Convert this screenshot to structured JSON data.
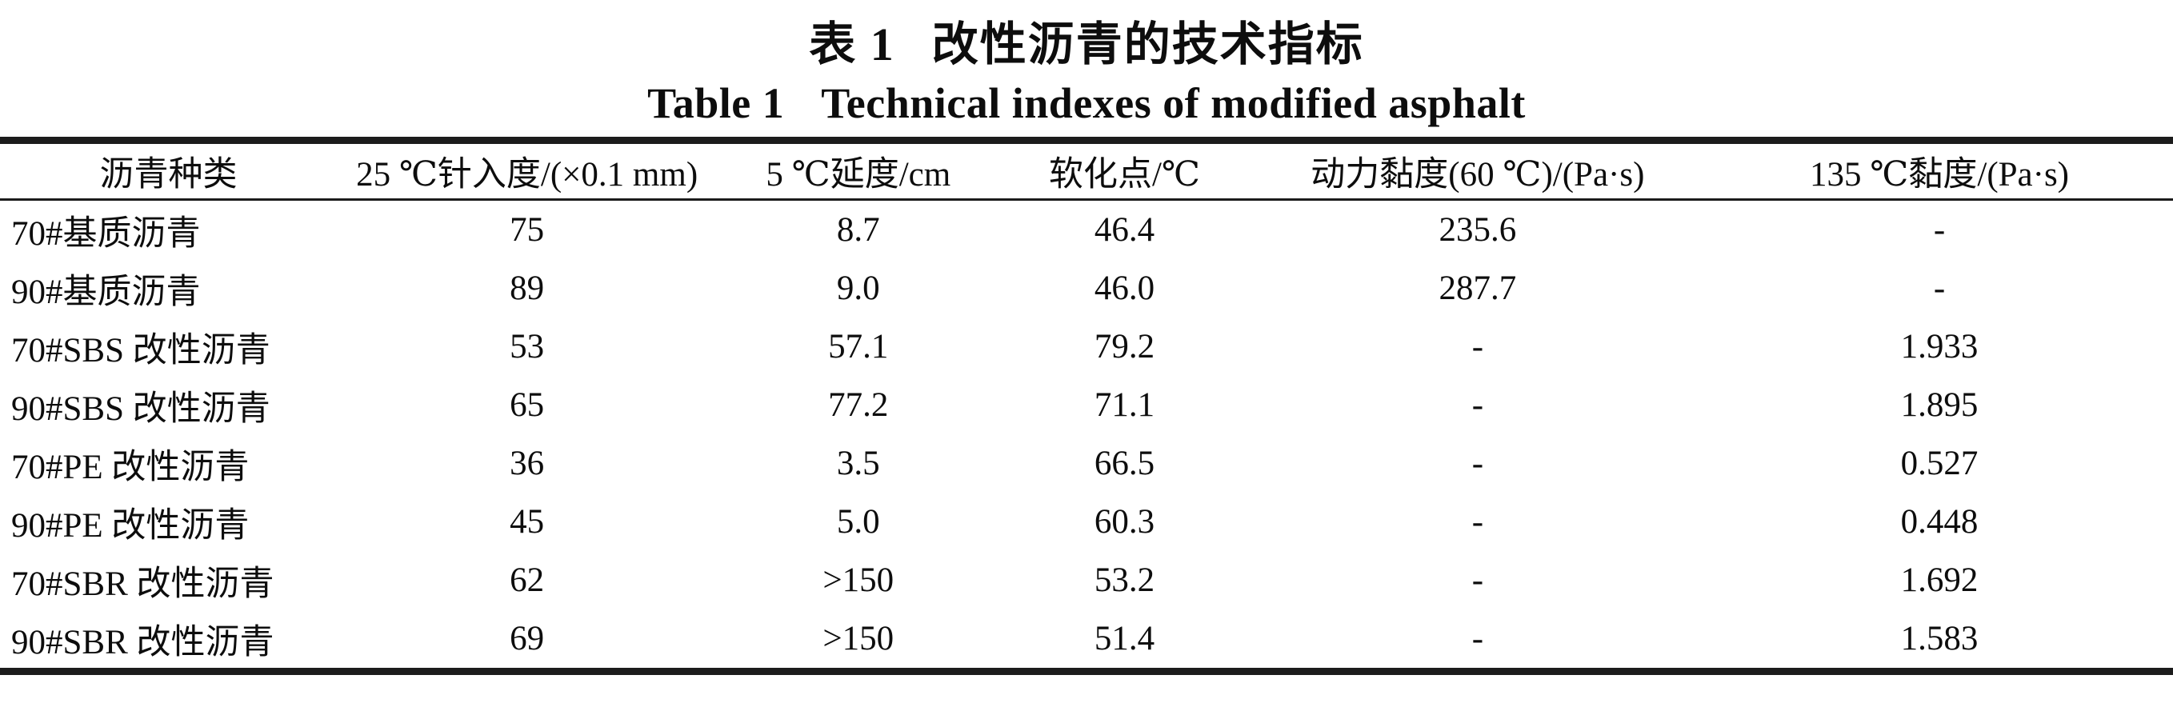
{
  "caption": {
    "zh_label": "表 1",
    "zh_title": "改性沥青的技术指标",
    "en_label": "Table 1",
    "en_title": "Technical indexes of modified asphalt"
  },
  "table": {
    "columns": [
      "沥青种类",
      "25 ℃针入度/(×0.1 mm)",
      "5 ℃延度/cm",
      "软化点/℃",
      "动力黏度(60 ℃)/(Pa·s)",
      "135 ℃黏度/(Pa·s)"
    ],
    "rows": [
      [
        "70#基质沥青",
        "75",
        "8.7",
        "46.4",
        "235.6",
        "-"
      ],
      [
        "90#基质沥青",
        "89",
        "9.0",
        "46.0",
        "287.7",
        "-"
      ],
      [
        "70#SBS 改性沥青",
        "53",
        "57.1",
        "79.2",
        "-",
        "1.933"
      ],
      [
        "90#SBS 改性沥青",
        "65",
        "77.2",
        "71.1",
        "-",
        "1.895"
      ],
      [
        "70#PE 改性沥青",
        "36",
        "3.5",
        "66.5",
        "-",
        "0.527"
      ],
      [
        "90#PE 改性沥青",
        "45",
        "5.0",
        "60.3",
        "-",
        "0.448"
      ],
      [
        "70#SBR 改性沥青",
        "62",
        ">150",
        "53.2",
        "-",
        "1.692"
      ],
      [
        "90#SBR 改性沥青",
        "69",
        ">150",
        "51.4",
        "-",
        "1.583"
      ]
    ]
  }
}
